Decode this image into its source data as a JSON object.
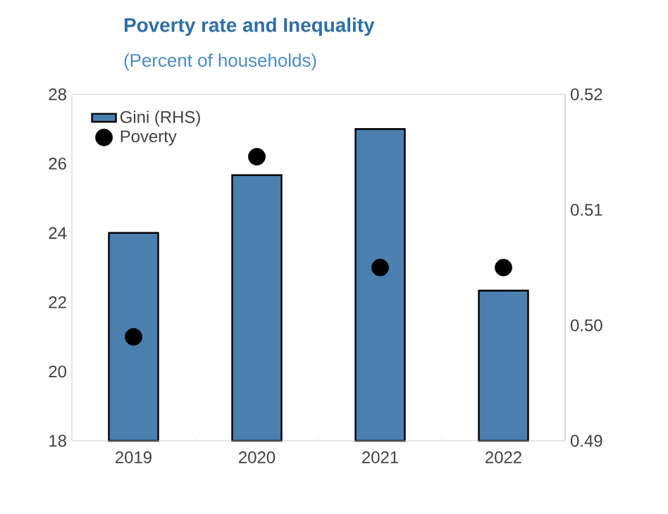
{
  "chart_data": {
    "type": "bar",
    "title": "Poverty rate and Inequality",
    "subtitle": "(Percent of households)",
    "categories": [
      "2019",
      "2020",
      "2021",
      "2022"
    ],
    "series": [
      {
        "name": "Gini (RHS)",
        "axis": "y2",
        "color": "#4a7fb0",
        "values": [
          0.508,
          0.513,
          0.517,
          0.503
        ]
      },
      {
        "name": "Poverty",
        "type": "scatter",
        "color": "#000000",
        "values": [
          21.0,
          26.2,
          23.0,
          23.0
        ]
      }
    ],
    "ylim": [
      18,
      28
    ],
    "yticks": [
      18,
      20,
      22,
      24,
      26,
      28
    ],
    "y2lim": [
      0.49,
      0.52
    ],
    "y2ticks": [
      0.49,
      {
        "value": 0.5,
        "label": "0.50"
      },
      0.51,
      0.52
    ],
    "legend": "top left"
  }
}
